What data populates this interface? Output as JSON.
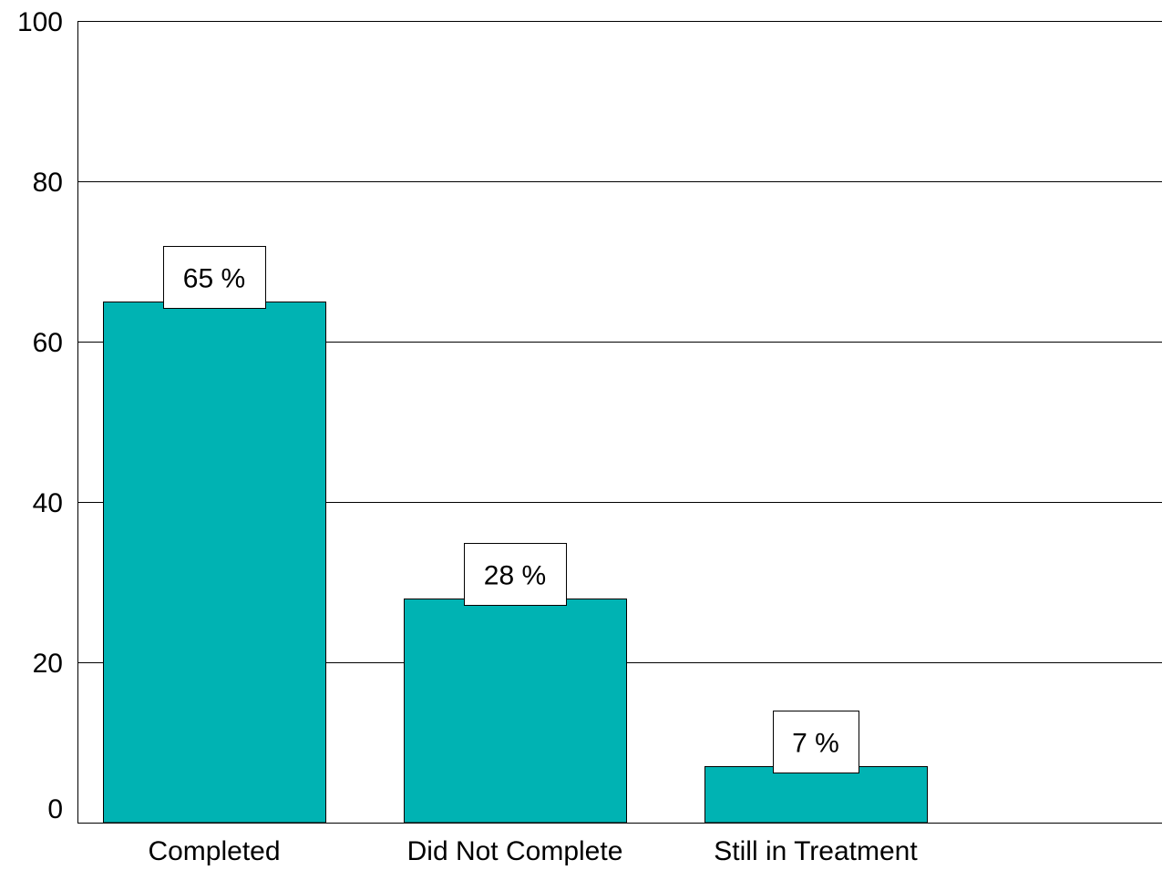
{
  "chart_data": {
    "type": "bar",
    "categories": [
      "Completed",
      "Did Not Complete",
      "Still in Treatment"
    ],
    "values": [
      65,
      28,
      7
    ],
    "data_labels": [
      "65 %",
      "28 %",
      "7 %"
    ],
    "ylim": [
      0,
      100
    ],
    "yticks": [
      0,
      20,
      40,
      60,
      80,
      100
    ],
    "ytick_labels": [
      "0",
      "20",
      "40",
      "60",
      "80",
      "100"
    ],
    "grid": true,
    "bar_color": "#00B3B3",
    "title": "",
    "xlabel": "",
    "ylabel": ""
  }
}
